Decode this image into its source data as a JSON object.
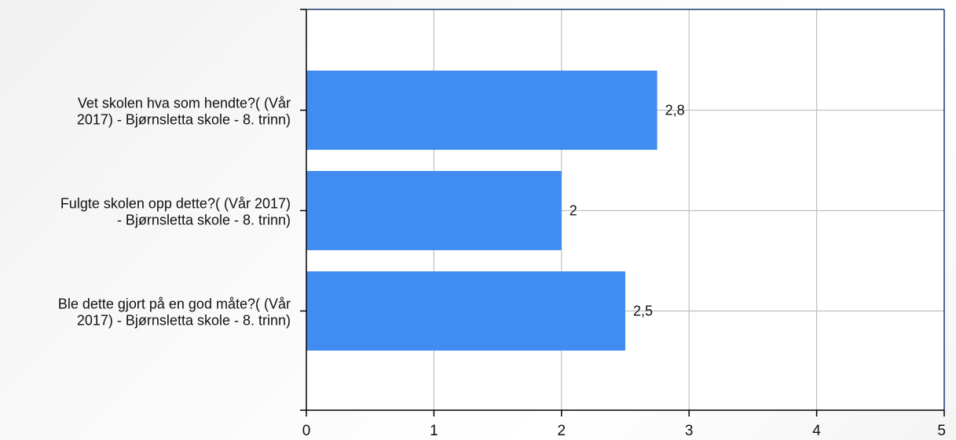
{
  "chart_data": {
    "type": "bar",
    "orientation": "horizontal",
    "categories": [
      [
        "Vet skolen hva som hendte?( (Vår",
        "2017) - Bjørnsletta skole - 8. trinn)"
      ],
      [
        "Fulgte skolen opp dette?( (Vår 2017)",
        "- Bjørnsletta skole - 8. trinn)"
      ],
      [
        "Ble dette gjort på en god måte?( (Vår",
        "2017) - Bjørnsletta skole - 8. trinn)"
      ]
    ],
    "values": [
      2.75,
      2.0,
      2.5
    ],
    "data_labels": [
      "2,8",
      "2",
      "2,5"
    ],
    "xlim": [
      0,
      5
    ],
    "x_ticks": [
      0,
      1,
      2,
      3,
      4,
      5
    ],
    "x_tick_labels": [
      "0",
      "1",
      "2",
      "3",
      "4",
      "5"
    ],
    "grid": true,
    "legend": "none",
    "colors": {
      "bar": "#418cf0",
      "grid": "#c0c0c0",
      "frame": "#1a3a6b",
      "axis": "#000000"
    }
  }
}
